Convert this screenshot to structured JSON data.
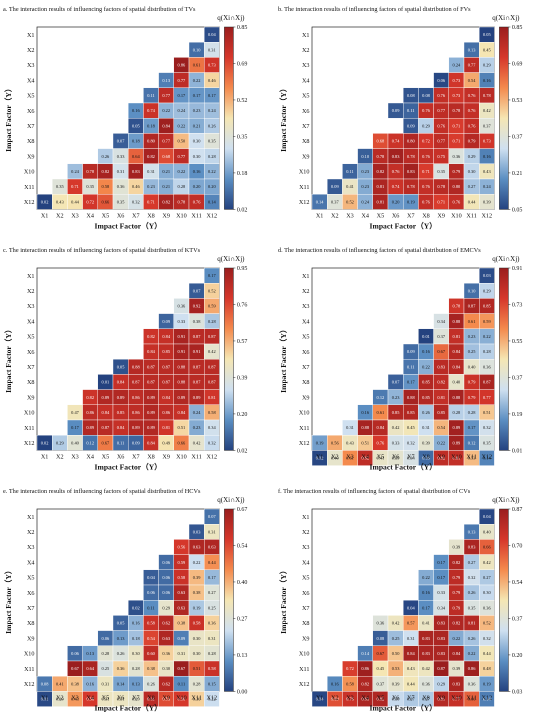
{
  "factors": [
    "X1",
    "X2",
    "X3",
    "X4",
    "X5",
    "X6",
    "X7",
    "X8",
    "X9",
    "X10",
    "X11",
    "X12"
  ],
  "shared": {
    "xlabel": "Impact Factor（Y）",
    "ylabel": "Impact Factor（Y）",
    "colorbar_label": "q(Xi∩Xj)",
    "colormap": [
      "#24427f",
      "#5b8ec2",
      "#cfe0f0",
      "#f5e6b3",
      "#f48a4d",
      "#d6372b",
      "#9a1e1e"
    ]
  },
  "chart_data": [
    {
      "type": "heatmap",
      "title": "a. The interaction results of influencing factors of spatial distribution of TVs",
      "colorbar_ticks": [
        "0.85",
        "0.69",
        "0.52",
        "0.35",
        "0.18",
        "0.02"
      ],
      "vmin": 0.02,
      "vmax": 0.85,
      "values": [
        [
          0.04
        ],
        [
          0.1,
          0.31
        ],
        [
          0.86,
          0.61,
          0.73
        ],
        [
          0.13,
          0.77,
          0.22,
          0.46
        ],
        [
          0.11,
          0.77,
          0.17,
          0.17,
          0.17
        ],
        [
          0.16,
          0.74,
          0.22,
          0.24,
          0.23,
          0.24
        ],
        [
          0.05,
          0.18,
          0.84,
          0.22,
          0.21,
          0.26
        ],
        [
          0.07,
          0.18,
          0.8,
          0.77,
          0.5,
          0.3,
          0.35
        ],
        [
          0.26,
          0.33,
          0.64,
          0.82,
          0.68,
          0.77,
          0.3,
          0.28
        ],
        [
          0.24,
          0.78,
          0.82,
          0.31,
          0.83,
          0.31,
          0.21,
          0.22,
          0.16,
          0.22
        ],
        [
          0.35,
          0.71,
          0.35,
          0.58,
          0.36,
          0.46,
          0.23,
          0.21,
          0.28,
          0.2,
          0.2
        ],
        [
          0.02,
          0.43,
          0.44,
          0.72,
          0.66,
          0.35,
          0.32,
          0.71,
          0.82,
          0.78,
          0.76,
          0.14
        ]
      ]
    },
    {
      "type": "heatmap",
      "title": "b. The interaction results of influencing factors of spatial distribution of FVs",
      "colorbar_ticks": [
        "0.85",
        "0.69",
        "0.53",
        "0.37",
        "0.21",
        "0.05"
      ],
      "vmin": 0.05,
      "vmax": 0.85,
      "values": [
        [
          0.05
        ],
        [
          0.13,
          0.45
        ],
        [
          0.24,
          0.77,
          0.29
        ],
        [
          0.06,
          0.73,
          0.54,
          0.16
        ],
        [
          0.08,
          0.08,
          0.76,
          0.73,
          0.76,
          0.78
        ],
        [
          0.09,
          0.11,
          0.76,
          0.77,
          0.78,
          0.76,
          0.42
        ],
        [
          0.09,
          0.29,
          0.76,
          0.71,
          0.76,
          0.37
        ],
        [
          0.68,
          0.74,
          0.8,
          0.72,
          0.77,
          0.71,
          0.79,
          0.73
        ],
        [
          0.1,
          0.78,
          0.83,
          0.78,
          0.76,
          0.75,
          0.36,
          0.29,
          0.16
        ],
        [
          0.11,
          0.23,
          0.82,
          0.76,
          0.83,
          0.71,
          0.35,
          0.79,
          0.3,
          0.43
        ],
        [
          0.09,
          0.41,
          0.23,
          0.81,
          0.74,
          0.78,
          0.76,
          0.78,
          0.8,
          0.27,
          0.24
        ],
        [
          0.14,
          0.37,
          0.52,
          0.24,
          0.81,
          0.2,
          0.19,
          0.76,
          0.71,
          0.76,
          0.44,
          0.39
        ]
      ]
    },
    {
      "type": "heatmap",
      "title": "c. The interaction results of influencing factors of spatial distribution of KTVs",
      "colorbar_ticks": [
        "0.95",
        "0.76",
        "0.57",
        "0.39",
        "0.20",
        "0.02"
      ],
      "vmin": 0.02,
      "vmax": 0.95,
      "values": [
        [
          0.17
        ],
        [
          0.07,
          0.52
        ],
        [
          0.36,
          0.92,
          0.59
        ],
        [
          0.09,
          0.33,
          0.38,
          0.28
        ],
        [
          0.82,
          0.84,
          0.91,
          0.87,
          0.87
        ],
        [
          0.84,
          0.85,
          0.91,
          0.91,
          0.42
        ],
        [
          0.05,
          0.88,
          0.87,
          0.87,
          0.88,
          0.87,
          0.87
        ],
        [
          0.01,
          0.84,
          0.87,
          0.87,
          0.87,
          0.88,
          0.87,
          0.87
        ],
        [
          0.82,
          0.89,
          0.89,
          0.86,
          0.89,
          0.84,
          0.89,
          0.89,
          0.81
        ],
        [
          0.47,
          0.86,
          0.84,
          0.85,
          0.86,
          0.89,
          0.86,
          0.84,
          0.24,
          0.58
        ],
        [
          0.17,
          0.89,
          0.87,
          0.84,
          0.89,
          0.89,
          0.81,
          0.51,
          0.23,
          0.34
        ],
        [
          0.02,
          0.29,
          0.4,
          0.12,
          0.67,
          0.11,
          0.09,
          0.84,
          0.49,
          0.66,
          0.42,
          0.32
        ]
      ]
    },
    {
      "type": "heatmap",
      "title": "d. The interaction results of influencing factors of spatial distribution of EMCVs",
      "colorbar_ticks": [
        "0.91",
        "0.73",
        "0.55",
        "0.37",
        "0.19",
        "0.01"
      ],
      "vmin": 0.01,
      "vmax": 0.91,
      "values": [
        [
          0.03
        ],
        [
          0.1,
          0.29
        ],
        [
          0.78,
          0.87,
          0.85
        ],
        [
          0.34,
          0.88,
          0.61,
          0.59
        ],
        [
          0.01,
          0.37,
          0.81,
          0.23,
          0.22
        ],
        [
          0.09,
          0.16,
          0.67,
          0.84,
          0.25,
          0.28
        ],
        [
          0.11,
          0.22,
          0.83,
          0.84,
          0.4,
          0.36
        ],
        [
          0.07,
          0.17,
          0.85,
          0.82,
          0.4,
          0.79,
          0.87
        ],
        [
          0.12,
          0.23,
          0.88,
          0.85,
          0.81,
          0.88,
          0.79,
          0.77
        ],
        [
          0.16,
          0.61,
          0.85,
          0.85,
          0.26,
          0.85,
          0.28,
          0.28,
          0.51
        ],
        [
          0.31,
          0.88,
          0.84,
          0.42,
          0.45,
          0.31,
          0.54,
          0.89,
          0.17,
          0.32
        ],
        [
          0.19,
          0.56,
          0.43,
          0.51,
          0.76,
          0.33,
          0.32,
          0.39,
          0.22,
          0.89,
          0.12,
          0.35
        ],
        [
          0.02,
          0.4,
          0.61,
          0.82,
          0.41,
          0.39,
          0.34,
          0.09,
          0.82,
          0.81,
          0.53,
          0.14
        ]
      ]
    },
    {
      "type": "heatmap",
      "title": "e. The interaction results of influencing factors of spatial distribution of HCVs",
      "colorbar_ticks": [
        "0.67",
        "0.54",
        "0.40",
        "0.27",
        "0.13",
        "0.00"
      ],
      "vmin": 0.0,
      "vmax": 0.67,
      "values": [
        [
          0.07
        ],
        [
          0.03,
          0.31
        ],
        [
          0.56,
          0.63,
          0.63
        ],
        [
          0.06,
          0.59,
          0.22,
          0.44
        ],
        [
          0.04,
          0.06,
          0.58,
          0.39,
          0.17
        ],
        [
          0.06,
          0.06,
          0.63,
          0.38,
          0.27
        ],
        [
          0.02,
          0.11,
          0.29,
          0.63,
          0.19,
          0.25
        ],
        [
          0.05,
          0.16,
          0.58,
          0.62,
          0.38,
          0.58,
          0.36
        ],
        [
          0.06,
          0.13,
          0.18,
          0.54,
          0.63,
          0.09,
          0.3,
          0.31
        ],
        [
          0.06,
          0.13,
          0.28,
          0.26,
          0.3,
          0.6,
          0.36,
          0.31,
          0.3,
          0.28
        ],
        [
          0.67,
          0.64,
          0.25,
          0.36,
          0.28,
          0.38,
          0.3,
          0.67,
          0.51,
          0.58
        ],
        [
          0.08,
          0.41,
          0.38,
          0.16,
          0.31,
          0.14,
          0.13,
          0.26,
          0.62,
          0.11,
          0.28,
          0.15
        ],
        [
          0.01,
          0.29,
          0.43,
          0.56,
          0.31,
          0.31,
          0.29,
          0.61,
          0.53,
          0.56,
          0.36,
          0.22
        ]
      ]
    },
    {
      "type": "heatmap",
      "title": "f. The interaction results of influencing factors of spatial distribution of CVs",
      "colorbar_ticks": [
        "0.87",
        "0.70",
        "0.54",
        "0.37",
        "0.20",
        "0.03"
      ],
      "vmin": 0.03,
      "vmax": 0.87,
      "values": [
        [
          0.04
        ],
        [
          0.13,
          0.4
        ],
        [
          0.39,
          0.83,
          0.66
        ],
        [
          0.17,
          0.82,
          0.27,
          0.42
        ],
        [
          0.22,
          0.17,
          0.79,
          0.32,
          0.27
        ],
        [
          0.16,
          0.33,
          0.79,
          0.26,
          0.3
        ],
        [
          0.04,
          0.17,
          0.34,
          0.79,
          0.35,
          0.36
        ],
        [
          0.36,
          0.42,
          0.57,
          0.41,
          0.83,
          0.82,
          0.81,
          0.52
        ],
        [
          0.08,
          0.25,
          0.31,
          0.83,
          0.83,
          0.22,
          0.26,
          0.32
        ],
        [
          0.14,
          0.67,
          0.5,
          0.84,
          0.83,
          0.83,
          0.84,
          0.22,
          0.44
        ],
        [
          0.72,
          0.86,
          0.45,
          0.53,
          0.43,
          0.42,
          0.87,
          0.39,
          0.86,
          0.48
        ],
        [
          0.16,
          0.58,
          0.82,
          0.37,
          0.39,
          0.44,
          0.36,
          0.29,
          0.83,
          0.36,
          0.19
        ],
        [
          0.04,
          0.69,
          0.76,
          0.83,
          0.82,
          0.3,
          0.27,
          0.27,
          0.81,
          0.77,
          0.66,
          0.14
        ]
      ]
    }
  ]
}
